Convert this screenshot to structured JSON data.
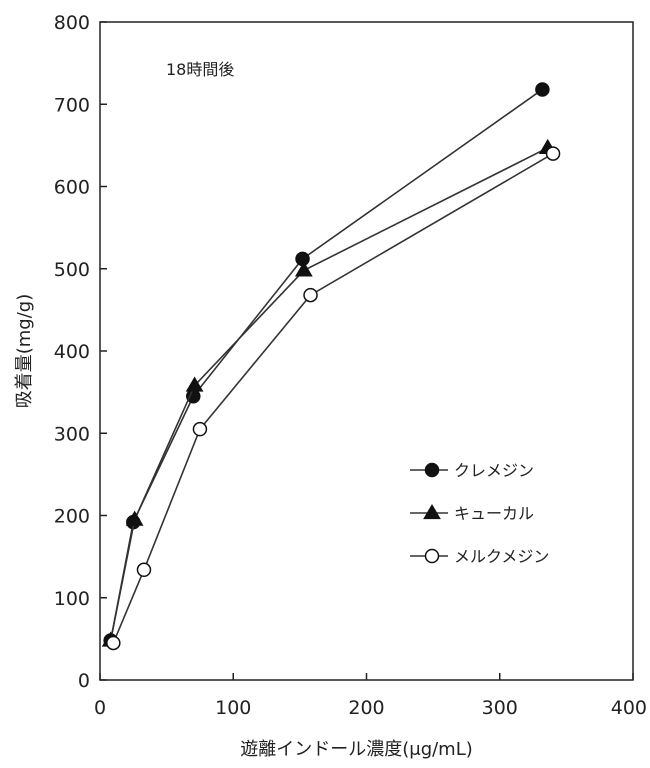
{
  "chart_data": {
    "type": "line",
    "annotation": "18時間後",
    "xlabel": "遊離インドール濃度(μg/mL)",
    "ylabel": "吸着量(mg/g)",
    "xlim": [
      0,
      400
    ],
    "ylim": [
      0,
      800
    ],
    "xticks": [
      "0",
      "100",
      "200",
      "300",
      "400"
    ],
    "yticks": [
      "0",
      "100",
      "200",
      "300",
      "400",
      "500",
      "600",
      "700",
      "800"
    ],
    "grid": false,
    "legend_position": "right-middle",
    "series": [
      {
        "name": "クレメジン",
        "marker": "filled-circle",
        "x": [
          8,
          25,
          70,
          152,
          332
        ],
        "y": [
          48,
          192,
          345,
          512,
          718
        ]
      },
      {
        "name": "キューカル",
        "marker": "filled-triangle",
        "x": [
          8,
          26,
          71,
          153,
          336
        ],
        "y": [
          48,
          195,
          358,
          498,
          647
        ]
      },
      {
        "name": "メルクメジン",
        "marker": "open-circle",
        "x": [
          10,
          33,
          75,
          158,
          340
        ],
        "y": [
          45,
          134,
          305,
          468,
          640
        ]
      }
    ]
  }
}
